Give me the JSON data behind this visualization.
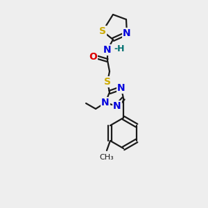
{
  "background_color": "#eeeeee",
  "bond_color": "#1a1a1a",
  "bond_width": 1.6,
  "atom_colors": {
    "N": "#0000dd",
    "S": "#ccaa00",
    "O": "#dd0000",
    "H": "#007070",
    "C": "#1a1a1a"
  },
  "font_size_atom": 10,
  "font_size_small": 9
}
